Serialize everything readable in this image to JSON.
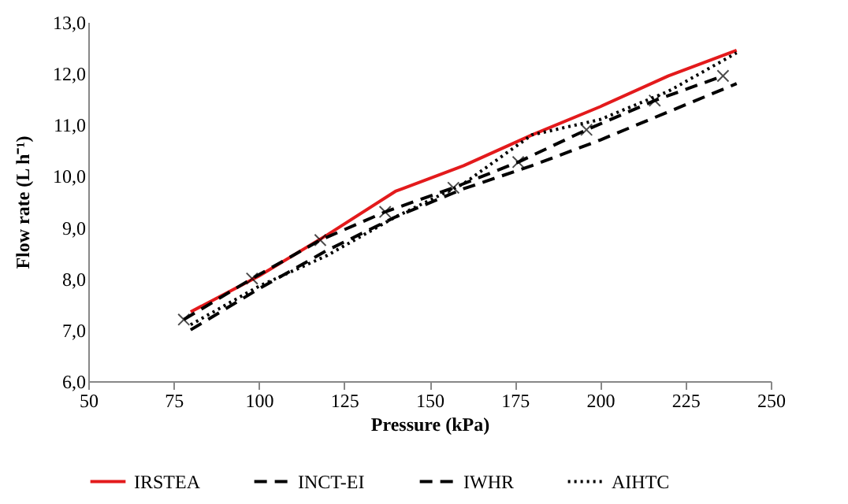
{
  "chart_data": {
    "type": "line",
    "xlabel": "Pressure (kPa)",
    "ylabel": "Flow rate (L h⁻¹)",
    "x": [
      80,
      100,
      120,
      140,
      160,
      180,
      200,
      220,
      240
    ],
    "series": [
      {
        "name": "IRSTEA",
        "color": "#e31a1c",
        "line_style": "solid",
        "values": [
          7.35,
          8.05,
          8.85,
          9.7,
          10.2,
          10.8,
          11.35,
          11.95,
          12.45
        ]
      },
      {
        "name": "INCT-EI",
        "color": "#000000",
        "line_style": "dashed",
        "marker": "cross",
        "x": [
          78,
          98,
          118,
          137,
          157,
          176,
          196,
          216,
          236
        ],
        "values": [
          7.2,
          8.0,
          8.75,
          9.3,
          9.77,
          10.27,
          10.9,
          11.47,
          11.95
        ]
      },
      {
        "name": "IWHR",
        "color": "#000000",
        "line_style": "dashed",
        "values": [
          7.0,
          7.8,
          8.55,
          9.2,
          9.75,
          10.2,
          10.7,
          11.25,
          11.8
        ]
      },
      {
        "name": "AIHTC",
        "color": "#000000",
        "line_style": "dotted",
        "values": [
          7.1,
          7.85,
          8.45,
          9.2,
          9.85,
          10.8,
          11.1,
          11.65,
          12.4
        ]
      }
    ],
    "xlim": [
      50,
      250
    ],
    "xticks": [
      50,
      75,
      100,
      125,
      150,
      175,
      200,
      225,
      250
    ],
    "ylim": [
      6,
      13
    ],
    "yticks": [
      {
        "value": 6,
        "label": "6,0"
      },
      {
        "value": 7,
        "label": "7,0"
      },
      {
        "value": 8,
        "label": "8,0"
      },
      {
        "value": 9,
        "label": "9,0"
      },
      {
        "value": 10,
        "label": "10,0"
      },
      {
        "value": 11,
        "label": "11,0"
      },
      {
        "value": 12,
        "label": "12,0"
      },
      {
        "value": 13,
        "label": "13,0"
      }
    ],
    "legend": "bottom",
    "grid": false
  }
}
